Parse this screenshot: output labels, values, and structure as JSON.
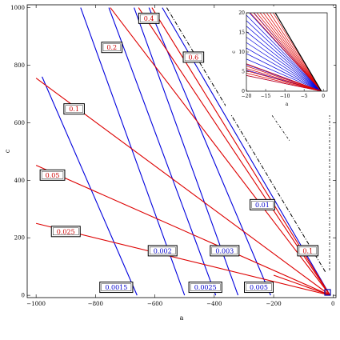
{
  "chart_data": [
    {
      "type": "line",
      "xlabel": "a",
      "ylabel": "c",
      "xlim": [
        -1030,
        10
      ],
      "ylim": [
        -8,
        1010
      ],
      "xticks": [
        -1000,
        -800,
        -600,
        -400,
        -200,
        0
      ],
      "xtick_labels": [
        "−1000",
        "−800",
        "−600",
        "−400",
        "−200",
        "0"
      ],
      "yticks": [
        0,
        200,
        400,
        600,
        800,
        1000
      ],
      "ytick_labels": [
        "0",
        "200",
        "400",
        "600",
        "800",
        "1000"
      ],
      "grid": false,
      "colors": {
        "red": "#dd0000",
        "blue": "#0000dd"
      },
      "red_lines": [
        {
          "label": "0.025",
          "x": [
            -1000,
            -10
          ],
          "y": [
            250,
            0
          ],
          "label_at": [
            -900,
            222
          ]
        },
        {
          "label": "0.05",
          "x": [
            -1000,
            -10
          ],
          "y": [
            452,
            0
          ],
          "label_at": [
            -945,
            418
          ]
        },
        {
          "label": "0.1",
          "x": [
            -1000,
            -10
          ],
          "y": [
            755,
            0
          ],
          "label_at": [
            -872,
            648
          ]
        },
        {
          "label": "0.2",
          "x": [
            -750,
            -10
          ],
          "y": [
            1000,
            0
          ],
          "label_at": [
            -745,
            862
          ]
        },
        {
          "label": "0.4",
          "x": [
            -655,
            -10
          ],
          "y": [
            1000,
            0
          ],
          "label_at": [
            -620,
            963
          ]
        },
        {
          "label": "0.6",
          "x": [
            -610,
            -10
          ],
          "y": [
            1000,
            0
          ],
          "label_at": [
            -470,
            828
          ]
        },
        {
          "label": "0.1",
          "x": [
            -200,
            -10
          ],
          "y": [
            70,
            0
          ],
          "label_at": [
            -85,
            155
          ]
        }
      ],
      "blue_lines": [
        {
          "label": "0.0015",
          "x": [
            -980,
            -660
          ],
          "y": [
            760,
            0
          ],
          "label_at": [
            -730,
            28
          ]
        },
        {
          "label": "0.002",
          "x": [
            -850,
            -500
          ],
          "y": [
            1000,
            0
          ],
          "label_at": [
            -574,
            155
          ]
        },
        {
          "label": "0.0025",
          "x": [
            -755,
            -395
          ],
          "y": [
            1000,
            0
          ],
          "label_at": [
            -430,
            28
          ]
        },
        {
          "label": "0.003",
          "x": [
            -670,
            -320
          ],
          "y": [
            1000,
            0
          ],
          "label_at": [
            -365,
            155
          ]
        },
        {
          "label": "0.005",
          "x": [
            -620,
            -210
          ],
          "y": [
            1000,
            0
          ],
          "label_at": [
            -250,
            28
          ]
        },
        {
          "label": "0.01",
          "x": [
            -575,
            -10
          ],
          "y": [
            1000,
            0
          ],
          "label_at": [
            -238,
            315
          ]
        }
      ],
      "boundary_dashed": {
        "x": [
          -560,
          -25
        ],
        "y": [
          1000,
          80
        ]
      }
    },
    {
      "type": "line",
      "inset": true,
      "xlabel": "a",
      "ylabel": "c",
      "xlim": [
        -20,
        1
      ],
      "ylim": [
        0,
        20
      ],
      "xticks": [
        -20,
        -15,
        -10,
        -5,
        0
      ],
      "xtick_labels": [
        "−20",
        "−15",
        "−10",
        "−5",
        "0"
      ],
      "yticks": [
        0,
        5,
        10,
        15,
        20
      ],
      "ytick_labels": [
        "0",
        "5",
        "10",
        "15",
        "20"
      ],
      "boundary": {
        "x": [
          -12.5,
          -0.5
        ],
        "y": [
          20,
          0
        ]
      }
    }
  ]
}
